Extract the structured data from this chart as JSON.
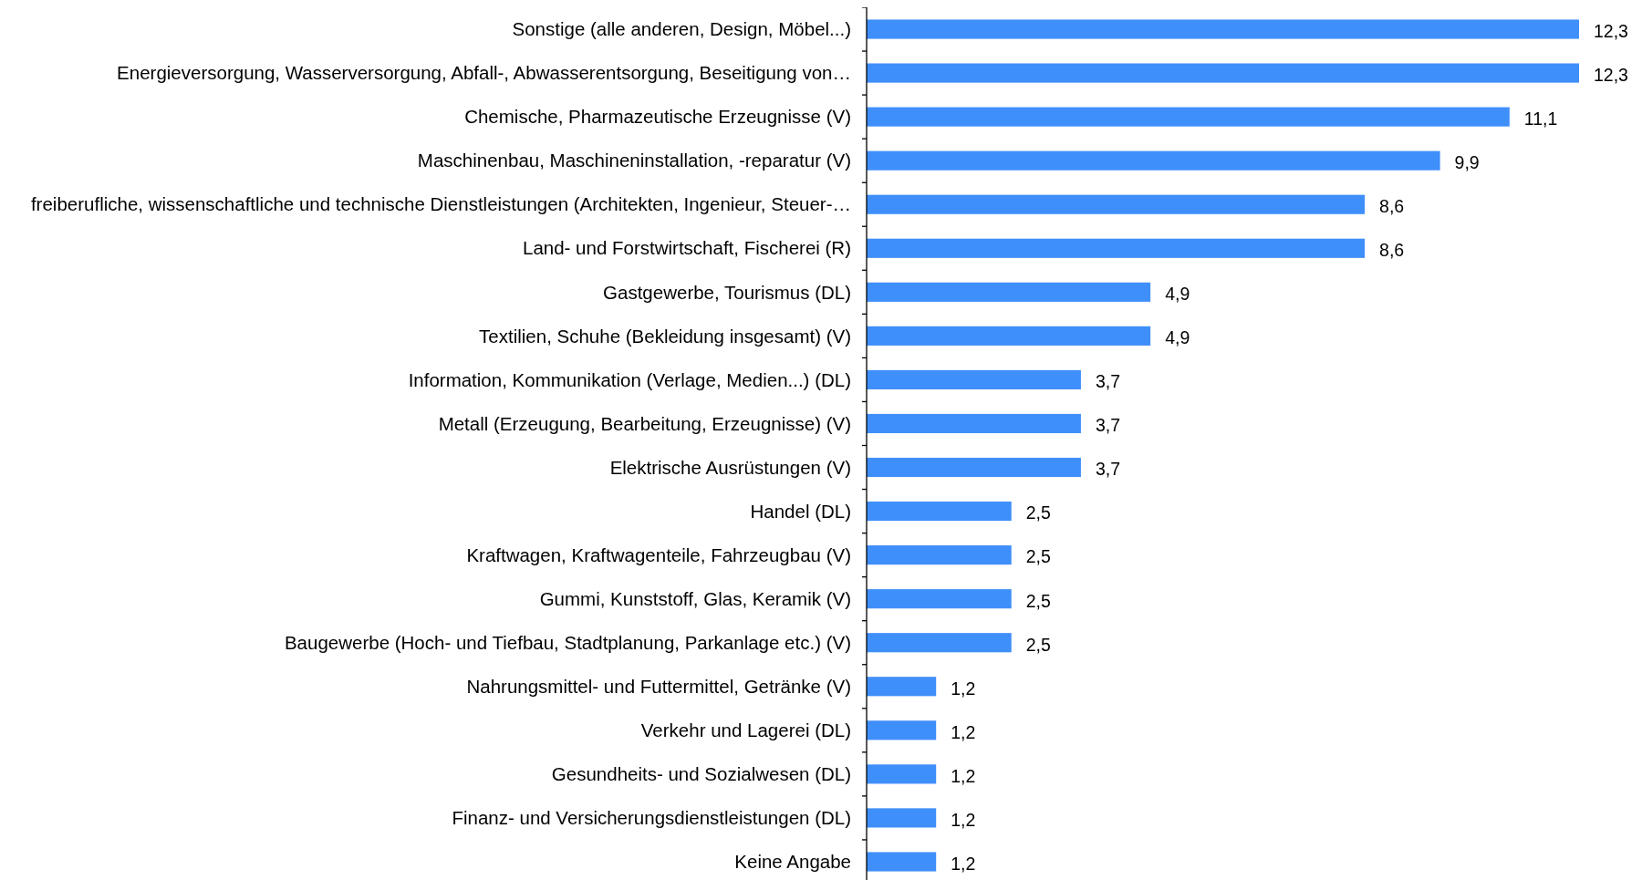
{
  "chart_data": {
    "type": "bar",
    "orientation": "horizontal",
    "color": "#3f8ffb",
    "categories": [
      "Sonstige (alle anderen, Design, Möbel...)",
      "Energieversorgung, Wasserversorgung, Abfall-, Abwasserentsorgung, Beseitigung von…",
      "Chemische, Pharmazeutische Erzeugnisse (V)",
      "Maschinenbau, Maschineninstallation, -reparatur (V)",
      "freiberufliche, wissenschaftliche und technische Dienstleistungen (Architekten, Ingenieur, Steuer-…",
      "Land- und Forstwirtschaft, Fischerei (R)",
      "Gastgewerbe, Tourismus (DL)",
      "Textilien, Schuhe (Bekleidung insgesamt) (V)",
      "Information, Kommunikation (Verlage, Medien...) (DL)",
      "Metall (Erzeugung, Bearbeitung, Erzeugnisse) (V)",
      "Elektrische Ausrüstungen (V)",
      "Handel (DL)",
      "Kraftwagen, Kraftwagenteile, Fahrzeugbau (V)",
      "Gummi, Kunststoff, Glas, Keramik (V)",
      "Baugewerbe (Hoch- und Tiefbau, Stadtplanung, Parkanlage etc.) (V)",
      "Nahrungsmittel- und Futtermittel, Getränke (V)",
      "Verkehr und Lagerei (DL)",
      "Gesundheits- und Sozialwesen (DL)",
      "Finanz- und Versicherungsdienstleistungen (DL)",
      "Keine Angabe"
    ],
    "values": [
      12.3,
      12.3,
      11.1,
      9.9,
      8.6,
      8.6,
      4.9,
      4.9,
      3.7,
      3.7,
      3.7,
      2.5,
      2.5,
      2.5,
      2.5,
      1.2,
      1.2,
      1.2,
      1.2,
      1.2
    ],
    "value_labels": [
      "12,3",
      "12,3",
      "11,1",
      "9,9",
      "8,6",
      "8,6",
      "4,9",
      "4,9",
      "3,7",
      "3,7",
      "3,7",
      "2,5",
      "2,5",
      "2,5",
      "2,5",
      "1,2",
      "1,2",
      "1,2",
      "1,2",
      "1,2"
    ]
  }
}
